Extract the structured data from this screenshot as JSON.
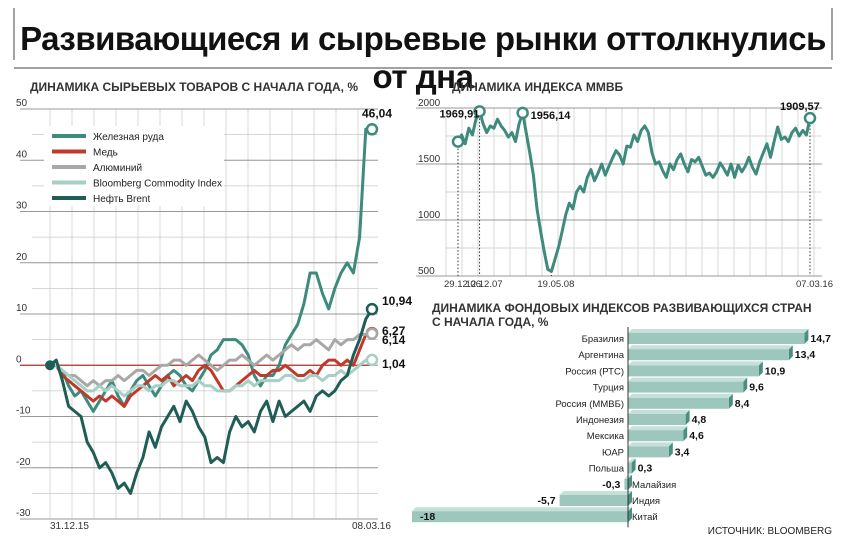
{
  "headline": "Развивающиеся и сырьевые рынки оттолкнулись от дна",
  "source": "ИСТОЧНИК: BLOOMBERG",
  "colors": {
    "iron": "#3e8b7d",
    "copper": "#c0392b",
    "aluminum": "#a8a8a8",
    "bcom": "#a6cfc5",
    "brent": "#1f5d55",
    "micex": "#3e8b7d",
    "bar_face": "#9dc7bc",
    "bar_side": "#4a8f80",
    "grid": "#c9c9c9"
  },
  "chart_data": [
    {
      "type": "line",
      "title": "ДИНАМИКА СЫРЬЕВЫХ ТОВАРОВ С НАЧАЛА ГОДА, %",
      "ylim": [
        -30,
        50
      ],
      "yticks": [
        -30,
        -20,
        -10,
        0,
        10,
        20,
        30,
        40,
        50
      ],
      "x_labels": [
        "31.12.15",
        "08.03.16"
      ],
      "legend_position": "top-left",
      "series": [
        {
          "name": "Железная руда",
          "color_key": "iron",
          "end_label": "46,04",
          "values": [
            0,
            0,
            -1,
            -4,
            -6,
            -5,
            -7,
            -9,
            -7,
            -5,
            -3,
            -6,
            -8,
            -5,
            -3,
            -2,
            -4,
            -6,
            -4,
            -2,
            -1,
            -2,
            -4,
            -5,
            -3,
            -1,
            2,
            3,
            5,
            5,
            5,
            4,
            2,
            -2,
            -4,
            -2,
            -2,
            0,
            4,
            6,
            8,
            12,
            18,
            18,
            14,
            11,
            15,
            18,
            20,
            18,
            25,
            46.04,
            46.04
          ]
        },
        {
          "name": "Медь",
          "color_key": "copper",
          "end_label": "6,27",
          "values": [
            0,
            0,
            -2,
            -3,
            -4,
            -5,
            -6,
            -7,
            -6,
            -7,
            -6,
            -7,
            -8,
            -6,
            -5,
            -4,
            -3,
            -2,
            -3,
            -2,
            -4,
            -3,
            -2,
            -3,
            -1,
            0,
            -1,
            -3,
            -5,
            -5,
            -4,
            -3,
            -2,
            -1,
            -2,
            -2,
            -1,
            -1,
            0,
            -1,
            -2,
            -2,
            -1,
            -2,
            0,
            1,
            1,
            0,
            1,
            0,
            3,
            6,
            6.27
          ]
        },
        {
          "name": "Алюминий",
          "color_key": "aluminum",
          "end_label": "6,14",
          "values": [
            0,
            0,
            -1,
            -2,
            -2,
            -3,
            -4,
            -3,
            -4,
            -3,
            -3,
            -2,
            -3,
            -2,
            -1,
            -1,
            -2,
            -1,
            0,
            0,
            1,
            1,
            0,
            1,
            2,
            1,
            0,
            -1,
            0,
            1,
            1,
            2,
            1,
            0,
            1,
            2,
            1,
            2,
            3,
            4,
            3,
            4,
            4,
            5,
            4,
            3,
            5,
            4,
            5,
            5,
            6,
            6,
            6.14
          ]
        },
        {
          "name": "Bloomberg Commodity Index",
          "color_key": "bcom",
          "end_label": "1,04",
          "values": [
            0,
            0,
            -1,
            -2,
            -3,
            -4,
            -5,
            -5,
            -4,
            -5,
            -4,
            -5,
            -6,
            -5,
            -4,
            -4,
            -5,
            -4,
            -4,
            -3,
            -3,
            -4,
            -4,
            -4,
            -3,
            -4,
            -4,
            -5,
            -5,
            -5,
            -4,
            -4,
            -3,
            -4,
            -3,
            -3,
            -3,
            -3,
            -2,
            -2,
            -3,
            -3,
            -2,
            -2,
            -3,
            -2,
            -2,
            -1,
            -2,
            -1,
            0,
            1,
            1.04
          ]
        },
        {
          "name": "Нефть Brent",
          "color_key": "brent",
          "end_label": "10,94",
          "values": [
            0,
            1,
            -3,
            -8,
            -9,
            -10,
            -15,
            -17,
            -20,
            -19,
            -21,
            -24,
            -23,
            -25,
            -21,
            -18,
            -13,
            -16,
            -12,
            -10,
            -8,
            -11,
            -7,
            -9,
            -12,
            -14,
            -19,
            -18,
            -19,
            -13,
            -10,
            -12,
            -11,
            -13,
            -9,
            -7,
            -11,
            -7,
            -10,
            -9,
            -8,
            -7,
            -9,
            -6,
            -5,
            -6,
            -5,
            -3,
            -2,
            2,
            5,
            9,
            10.94
          ]
        }
      ]
    },
    {
      "type": "line",
      "title": "ДИНАМИКА ИНДЕКСА ММВБ",
      "ylim": [
        500,
        2000
      ],
      "yticks": [
        500,
        1000,
        1500,
        2000
      ],
      "x_labels": [
        "29.12.06",
        "12.12.07",
        "19.05.08",
        "07.03.16"
      ],
      "annotations": [
        {
          "label": "1969,91",
          "index": 6
        },
        {
          "label": "1956,14",
          "index": 18
        },
        {
          "label": "1909,57",
          "index": -1
        }
      ],
      "series": [
        {
          "name": "",
          "color_key": "micex",
          "values": [
            1700,
            1760,
            1680,
            1820,
            1760,
            1900,
            1969.91,
            1860,
            1780,
            1840,
            1820,
            1900,
            1840,
            1800,
            1740,
            1780,
            1700,
            1860,
            1956.14,
            1780,
            1600,
            1400,
            1100,
            900,
            720,
            560,
            540,
            650,
            760,
            900,
            1050,
            1150,
            1100,
            1250,
            1300,
            1250,
            1380,
            1450,
            1350,
            1420,
            1500,
            1400,
            1480,
            1550,
            1620,
            1580,
            1500,
            1660,
            1650,
            1760,
            1700,
            1800,
            1840,
            1780,
            1600,
            1500,
            1520,
            1440,
            1380,
            1500,
            1450,
            1540,
            1590,
            1500,
            1430,
            1540,
            1520,
            1560,
            1480,
            1400,
            1420,
            1380,
            1430,
            1510,
            1460,
            1400,
            1500,
            1380,
            1490,
            1430,
            1480,
            1560,
            1470,
            1410,
            1520,
            1600,
            1680,
            1560,
            1700,
            1830,
            1720,
            1740,
            1700,
            1780,
            1820,
            1750,
            1800,
            1760,
            1909.57
          ]
        }
      ]
    },
    {
      "type": "bar",
      "title": "ДИНАМИКА ФОНДОВЫХ ИНДЕКСОВ РАЗВИВАЮЩИХСЯ СТРАН С НАЧАЛА ГОДА, %",
      "categories": [
        "Бразилия",
        "Аргентина",
        "Россия (РТС)",
        "Турция",
        "Россия (ММВБ)",
        "Индонезия",
        "Мексика",
        "ЮАР",
        "Польша",
        "Малайзия",
        "Индия",
        "Китай"
      ],
      "values": [
        14.7,
        13.4,
        10.9,
        9.6,
        8.4,
        4.8,
        4.6,
        3.4,
        0.3,
        -0.3,
        -5.7,
        -18
      ],
      "value_labels": [
        "14,7",
        "13,4",
        "10,9",
        "9,6",
        "8,4",
        "4,8",
        "4,6",
        "3,4",
        "0,3",
        "-0,3",
        "-5,7",
        "-18"
      ]
    }
  ]
}
